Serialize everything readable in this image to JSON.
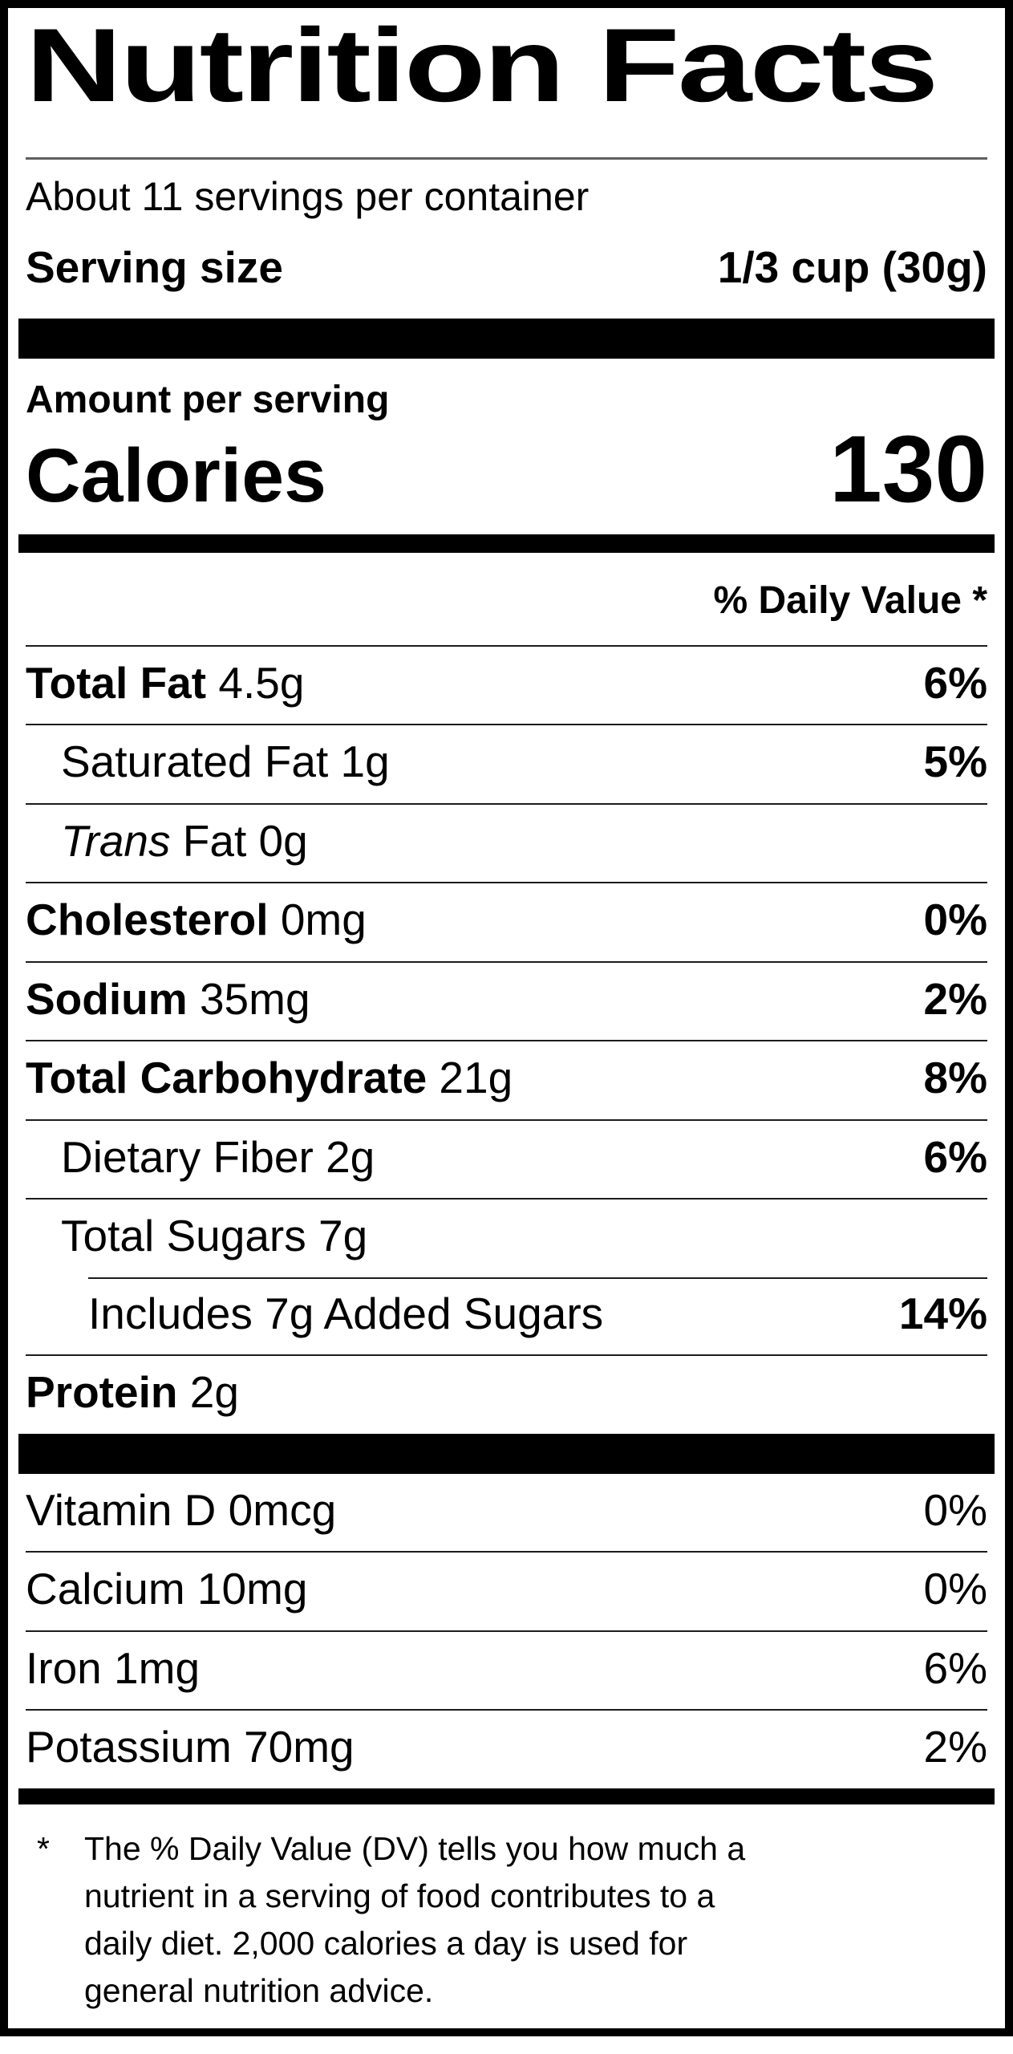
{
  "label": {
    "title": "Nutrition Facts",
    "servings_per_container": "About 11 servings per container",
    "serving_size_label": "Serving size",
    "serving_size_value": "1/3 cup (30g)",
    "amount_per_serving": "Amount per serving",
    "calories_label": "Calories",
    "calories_value": "130",
    "daily_value_header": "% Daily Value *",
    "nutrients": [
      {
        "bold": "Total Fat",
        "rest": " 4.5g",
        "dv": "6%"
      },
      {
        "rest": "Saturated Fat 1g",
        "dv": "5%"
      },
      {
        "italic": "Trans",
        "rest": " Fat 0g",
        "dv": ""
      },
      {
        "bold": "Cholesterol",
        "rest": " 0mg",
        "dv": "0%"
      },
      {
        "bold": "Sodium",
        "rest": " 35mg",
        "dv": "2%"
      },
      {
        "bold": "Total Carbohydrate",
        "rest": " 21g",
        "dv": "8%"
      },
      {
        "rest": "Dietary Fiber 2g",
        "dv": "6%"
      },
      {
        "rest": "Total Sugars 7g",
        "dv": ""
      },
      {
        "rest": "Includes 7g Added Sugars",
        "dv": "14%"
      },
      {
        "bold": "Protein",
        "rest": " 2g",
        "dv": ""
      }
    ],
    "vitamins": [
      {
        "name": "Vitamin D 0mcg",
        "dv": "0%"
      },
      {
        "name": "Calcium 10mg",
        "dv": "0%"
      },
      {
        "name": "Iron 1mg",
        "dv": "6%"
      },
      {
        "name": "Potassium 70mg",
        "dv": "2%"
      }
    ],
    "footnote_marker": "*",
    "footnote_lines": [
      "The % Daily Value (DV) tells you how much a",
      "nutrient in a serving of food contributes to a",
      "daily diet. 2,000 calories a day is used for",
      "general nutrition advice."
    ]
  }
}
